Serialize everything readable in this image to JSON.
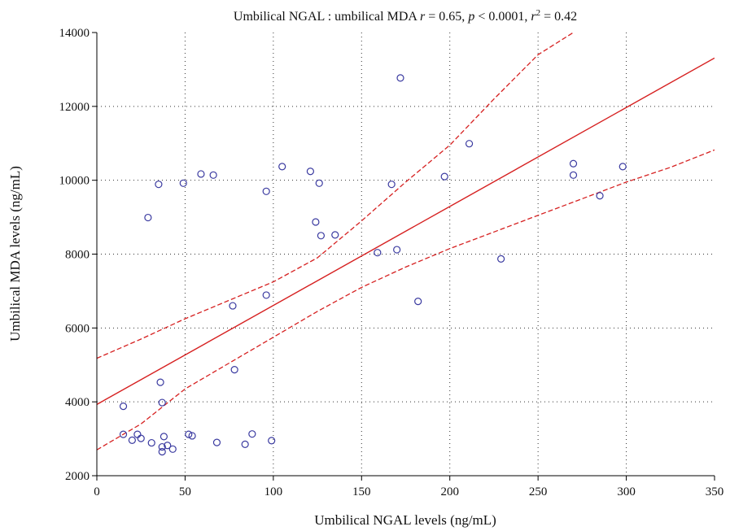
{
  "chart_data": {
    "type": "scatter",
    "title": {
      "prefix": "Umbilical NGAL : umbilical MDA ",
      "r_symbol": "r",
      "r_value": " = 0.65, ",
      "p_symbol": "p",
      "p_value": " < 0.0001, ",
      "r2_symbol": "r",
      "r2_exp": "2",
      "r2_value": " = 0.42"
    },
    "xlabel": "Umbilical NGAL levels (ng/mL)",
    "ylabel": "Umbilical MDA levels (ng/mL)",
    "xlim": [
      0,
      350
    ],
    "ylim": [
      2000,
      14000
    ],
    "xticks": [
      0,
      50,
      100,
      150,
      200,
      250,
      300,
      350
    ],
    "yticks": [
      2000,
      4000,
      6000,
      8000,
      10000,
      12000,
      14000
    ],
    "grid": true,
    "colors": {
      "points": "#3a3aa0",
      "fit": "#d62020",
      "axis": "#000000"
    },
    "regression": {
      "intercept": 3930,
      "slope": 26.8
    },
    "confidence_band": {
      "upper": [
        [
          0,
          5180
        ],
        [
          25,
          5700
        ],
        [
          50,
          6250
        ],
        [
          75,
          6750
        ],
        [
          100,
          7250
        ],
        [
          125,
          7900
        ],
        [
          150,
          8900
        ],
        [
          175,
          9950
        ],
        [
          200,
          10950
        ],
        [
          225,
          12200
        ],
        [
          250,
          13400
        ],
        [
          270,
          14000
        ]
      ],
      "lower": [
        [
          0,
          2700
        ],
        [
          25,
          3400
        ],
        [
          50,
          4350
        ],
        [
          75,
          5050
        ],
        [
          100,
          5750
        ],
        [
          125,
          6450
        ],
        [
          150,
          7100
        ],
        [
          175,
          7650
        ],
        [
          200,
          8150
        ],
        [
          225,
          8600
        ],
        [
          250,
          9050
        ],
        [
          275,
          9500
        ],
        [
          300,
          9950
        ],
        [
          325,
          10350
        ],
        [
          350,
          10820
        ]
      ]
    },
    "points": [
      [
        15,
        3880
      ],
      [
        15,
        3120
      ],
      [
        20,
        2960
      ],
      [
        23,
        3120
      ],
      [
        25,
        3010
      ],
      [
        29,
        8990
      ],
      [
        31,
        2890
      ],
      [
        35,
        9890
      ],
      [
        36,
        4530
      ],
      [
        37,
        3980
      ],
      [
        37,
        2780
      ],
      [
        37,
        2650
      ],
      [
        38,
        3060
      ],
      [
        40,
        2820
      ],
      [
        43,
        2720
      ],
      [
        49,
        9920
      ],
      [
        52,
        3120
      ],
      [
        54,
        3080
      ],
      [
        59,
        10170
      ],
      [
        66,
        10140
      ],
      [
        68,
        2900
      ],
      [
        77,
        6600
      ],
      [
        78,
        4870
      ],
      [
        84,
        2850
      ],
      [
        88,
        3130
      ],
      [
        96,
        6890
      ],
      [
        96,
        9700
      ],
      [
        99,
        2950
      ],
      [
        105,
        10370
      ],
      [
        121,
        10240
      ],
      [
        124,
        8870
      ],
      [
        126,
        9920
      ],
      [
        127,
        8500
      ],
      [
        135,
        8520
      ],
      [
        159,
        8040
      ],
      [
        167,
        9890
      ],
      [
        170,
        8120
      ],
      [
        172,
        12770
      ],
      [
        182,
        6720
      ],
      [
        197,
        10100
      ],
      [
        211,
        10990
      ],
      [
        229,
        7870
      ],
      [
        270,
        10450
      ],
      [
        270,
        10140
      ],
      [
        285,
        9580
      ],
      [
        298,
        10370
      ]
    ]
  }
}
